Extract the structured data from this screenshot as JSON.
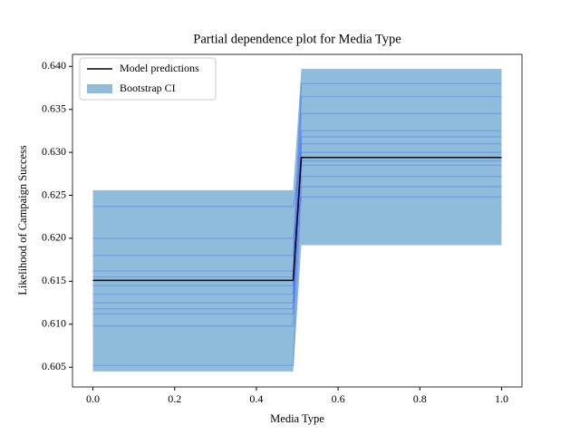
{
  "chart_data": {
    "type": "line",
    "title": "Partial dependence plot for Media Type",
    "xlabel": "Media Type",
    "ylabel": "Likelihood of Campaign Success",
    "x": [
      0,
      0.49,
      0.51,
      1
    ],
    "series": [
      {
        "name": "Model predictions",
        "color": "#000000",
        "values": [
          0.6151,
          0.6151,
          0.6294,
          0.6294
        ]
      },
      {
        "name": "Bootstrap CI",
        "color": "#8fbcdb",
        "lower": [
          0.6045,
          0.6045,
          0.6192,
          0.6192
        ],
        "upper": [
          0.6256,
          0.6256,
          0.6397,
          0.6397
        ]
      }
    ],
    "bootstrap_color": "#2244ff",
    "bootstrap_samples": [
      [
        0.6052,
        0.6052,
        0.626,
        0.626
      ],
      [
        0.6098,
        0.6098,
        0.6272,
        0.6272
      ],
      [
        0.6112,
        0.6112,
        0.6285,
        0.6285
      ],
      [
        0.6125,
        0.6125,
        0.63,
        0.63
      ],
      [
        0.6135,
        0.6135,
        0.631,
        0.631
      ],
      [
        0.6145,
        0.6145,
        0.6325,
        0.6325
      ],
      [
        0.6155,
        0.6155,
        0.6345,
        0.6345
      ],
      [
        0.6162,
        0.6162,
        0.6365,
        0.6365
      ],
      [
        0.618,
        0.618,
        0.638,
        0.638
      ],
      [
        0.62,
        0.62,
        0.6248,
        0.6248
      ],
      [
        0.6237,
        0.6237,
        0.629,
        0.629
      ],
      [
        0.6118,
        0.6118,
        0.6318,
        0.6318
      ]
    ],
    "xlim": [
      -0.05,
      1.05
    ],
    "ylim": [
      0.6027,
      0.6414
    ],
    "xticks": [
      {
        "value": 0,
        "label": "0.0"
      },
      0.2,
      0.4,
      0.6,
      0.8,
      {
        "value": 1,
        "label": "1.0"
      }
    ],
    "yticks": [
      0.605,
      {
        "value": 0.61,
        "label": "0.610"
      },
      0.615,
      {
        "value": 0.62,
        "label": "0.620"
      },
      0.625,
      {
        "value": 0.63,
        "label": "0.630"
      },
      0.635,
      {
        "value": 0.64,
        "label": "0.640"
      }
    ],
    "legend": "upper left"
  }
}
